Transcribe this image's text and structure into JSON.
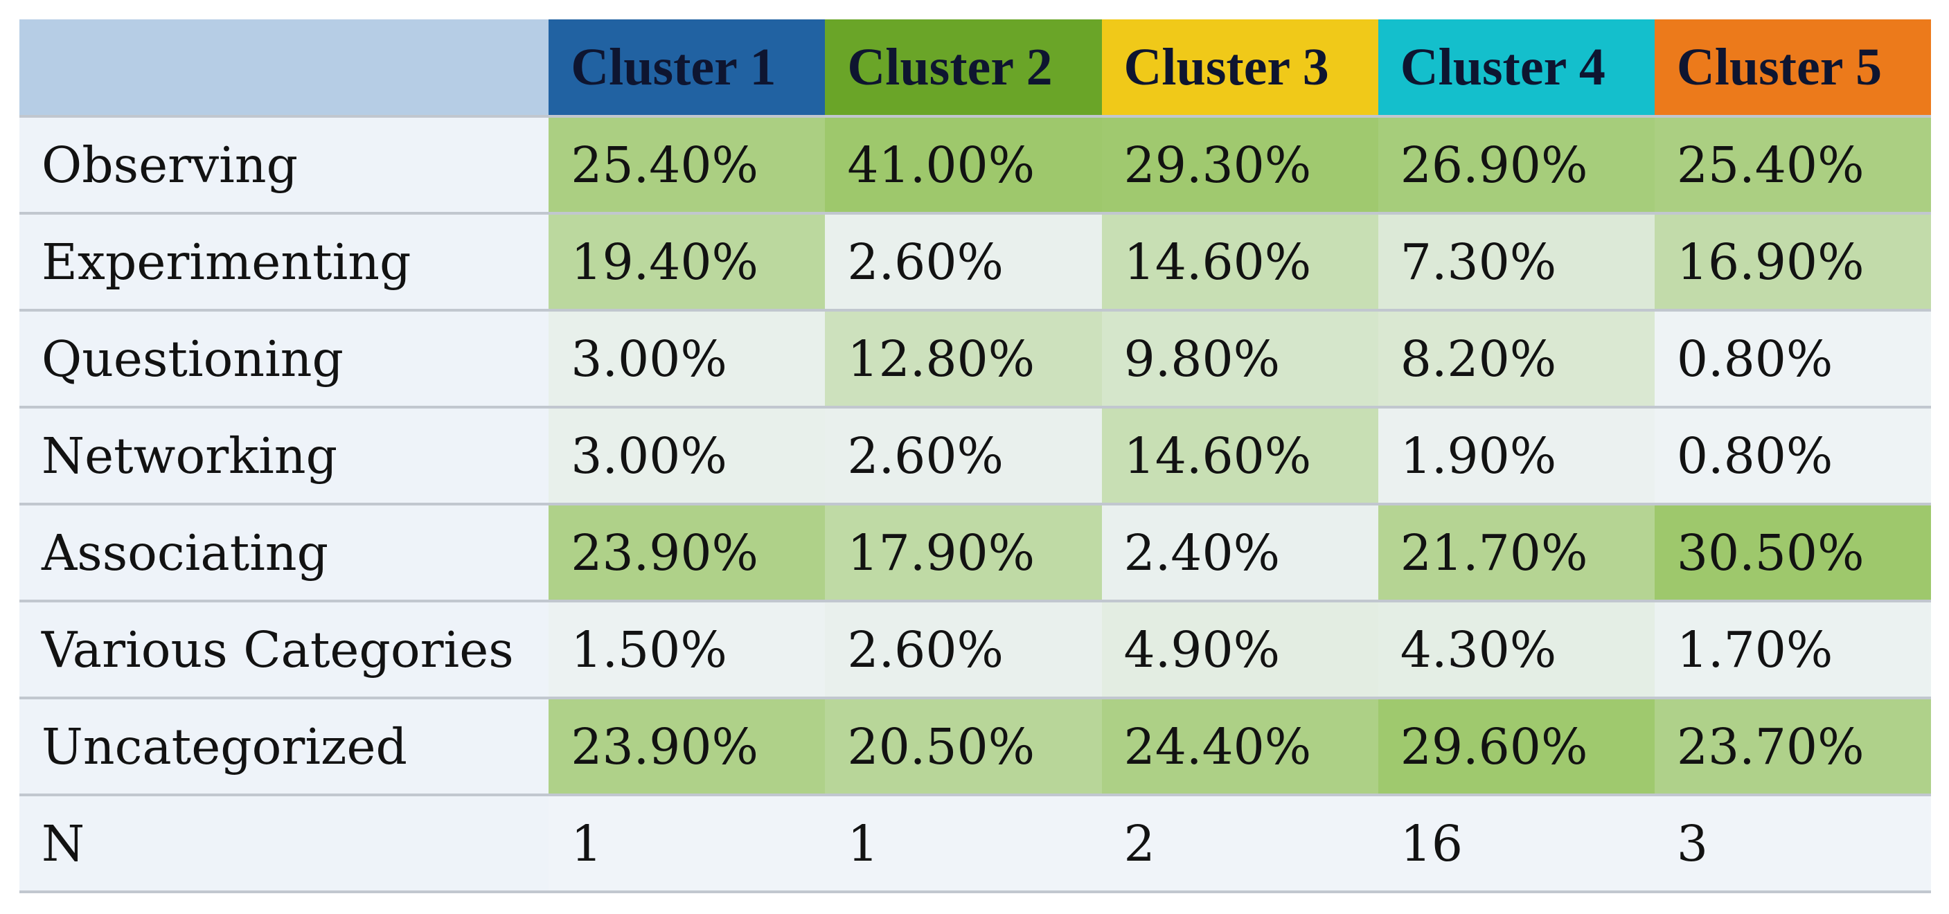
{
  "chart_data": {
    "type": "table",
    "columns": [
      "",
      "Cluster 1",
      "Cluster 2",
      "Cluster 3",
      "Cluster 4",
      "Cluster 5"
    ],
    "header_colors": [
      "#b6cde5",
      "#2162a2",
      "#6aa528",
      "#f0c919",
      "#14bfcc",
      "#ec7a1b"
    ],
    "rows": [
      {
        "label": "Observing",
        "cells": [
          "25.40%",
          "41.00%",
          "29.30%",
          "26.90%",
          "25.40%"
        ]
      },
      {
        "label": "Experimenting",
        "cells": [
          "19.40%",
          "2.60%",
          "14.60%",
          "7.30%",
          "16.90%"
        ]
      },
      {
        "label": "Questioning",
        "cells": [
          "3.00%",
          "12.80%",
          "9.80%",
          "8.20%",
          "0.80%"
        ]
      },
      {
        "label": "Networking",
        "cells": [
          "3.00%",
          "2.60%",
          "14.60%",
          "1.90%",
          "0.80%"
        ]
      },
      {
        "label": "Associating",
        "cells": [
          "23.90%",
          "17.90%",
          "2.40%",
          "21.70%",
          "30.50%"
        ]
      },
      {
        "label": "Various Categories",
        "cells": [
          "1.50%",
          "2.60%",
          "4.90%",
          "4.30%",
          "1.70%"
        ]
      },
      {
        "label": "Uncategorized",
        "cells": [
          "23.90%",
          "20.50%",
          "24.40%",
          "29.60%",
          "23.70%"
        ]
      },
      {
        "label": "N",
        "cells": [
          "1",
          "1",
          "2",
          "16",
          "3"
        ]
      }
    ],
    "heatmap_colors": {
      "low": "#f0f4f9",
      "high": "#9ec86c",
      "value_range": [
        0,
        30
      ]
    }
  }
}
